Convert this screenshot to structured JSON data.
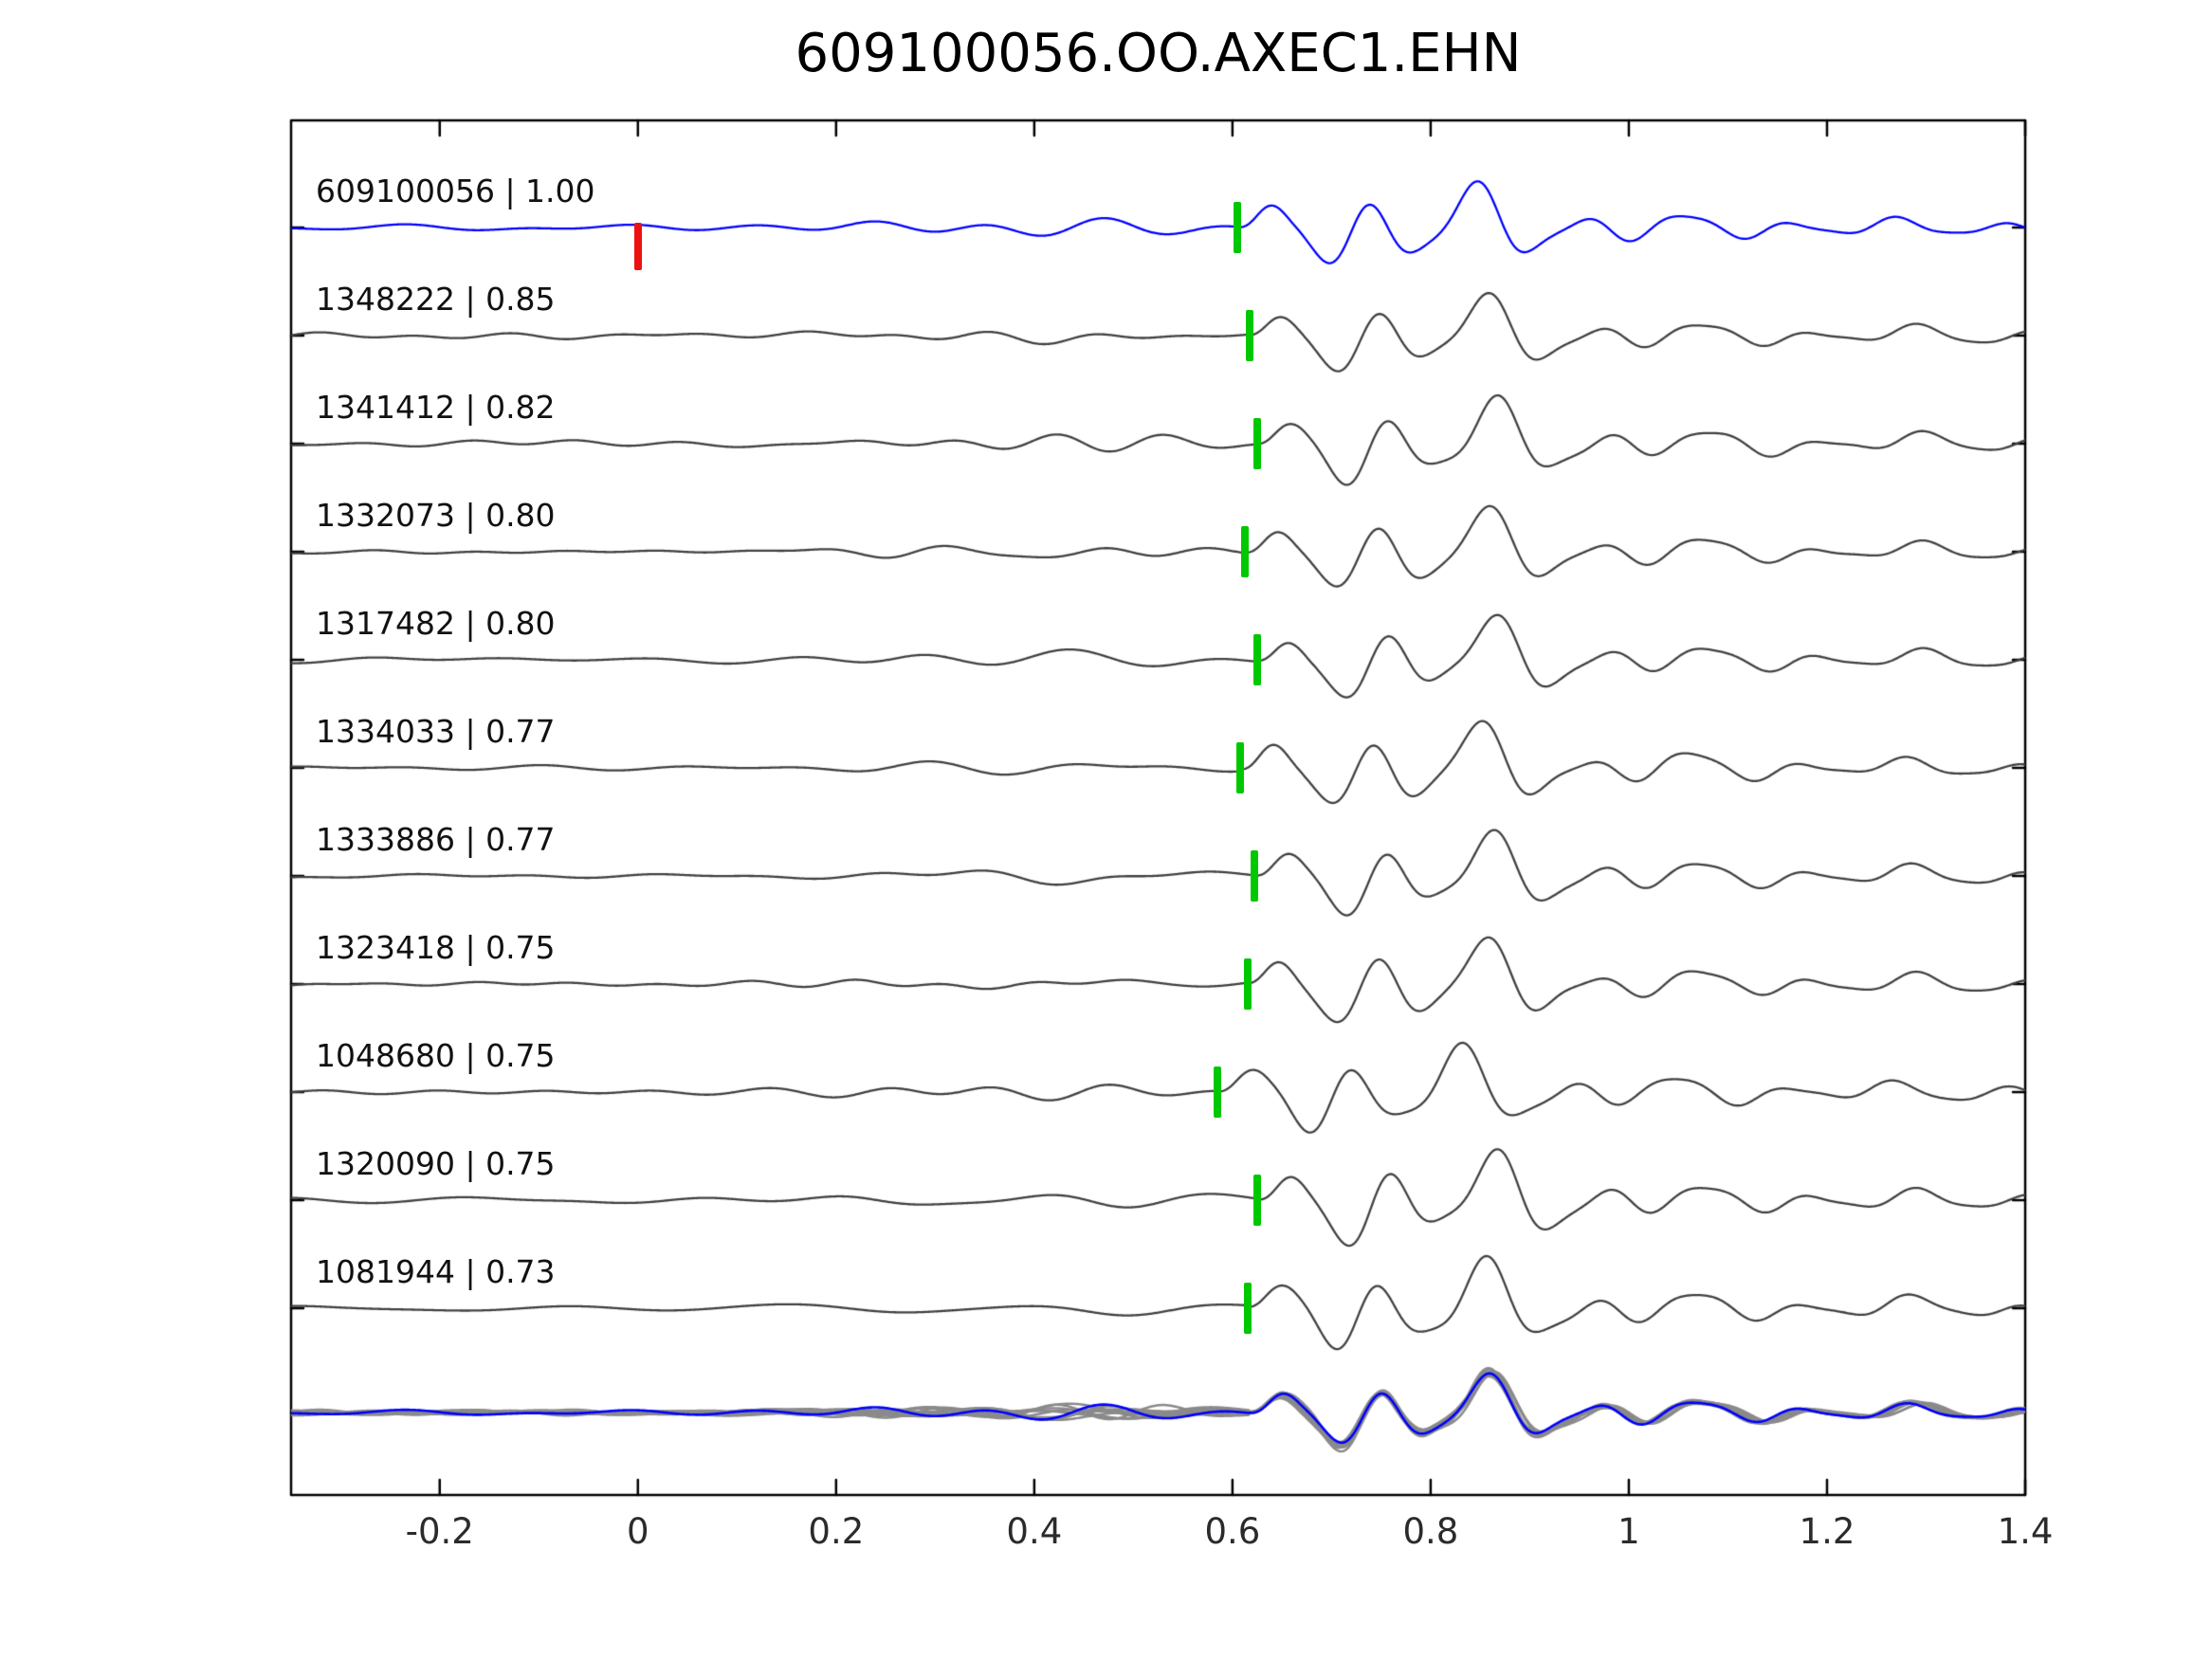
{
  "title": "609100056.OO.AXEC1.EHN",
  "chart_data": {
    "type": "line",
    "title": "609100056.OO.AXEC1.EHN",
    "xlabel": "",
    "ylabel": "",
    "xlim": [
      -0.35,
      1.4
    ],
    "grid": false,
    "legend": "none",
    "x_ticks": [
      -0.2,
      0,
      0.2,
      0.4,
      0.6,
      0.8,
      1,
      1.2,
      1.4
    ],
    "x_tick_labels": [
      "-0.2",
      "0",
      "0.2",
      "0.4",
      "0.6",
      "0.8",
      "1",
      "1.2",
      "1.4"
    ],
    "colors": {
      "template_trace": "#0000ff",
      "match_trace": "#404040",
      "overlay_trace": "#8a8a8a",
      "pick_marker": "#00c800",
      "template_origin_marker": "#ee1111",
      "axis": "#000000"
    },
    "traces": [
      {
        "id": "609100056",
        "correlation": "1.00",
        "label": "609100056 | 1.00",
        "pick_time": 0.605,
        "template_origin_time": 0.0,
        "is_template": true
      },
      {
        "id": "1348222",
        "correlation": "0.85",
        "label": "1348222 | 0.85",
        "pick_time": 0.617
      },
      {
        "id": "1341412",
        "correlation": "0.82",
        "label": "1341412 | 0.82",
        "pick_time": 0.625
      },
      {
        "id": "1332073",
        "correlation": "0.80",
        "label": "1332073 | 0.80",
        "pick_time": 0.613
      },
      {
        "id": "1317482",
        "correlation": "0.80",
        "label": "1317482 | 0.80",
        "pick_time": 0.625
      },
      {
        "id": "1334033",
        "correlation": "0.77",
        "label": "1334033 | 0.77",
        "pick_time": 0.608
      },
      {
        "id": "1333886",
        "correlation": "0.77",
        "label": "1333886 | 0.77",
        "pick_time": 0.622
      },
      {
        "id": "1323418",
        "correlation": "0.75",
        "label": "1323418 | 0.75",
        "pick_time": 0.615
      },
      {
        "id": "1048680",
        "correlation": "0.75",
        "label": "1048680 | 0.75",
        "pick_time": 0.585
      },
      {
        "id": "1320090",
        "correlation": "0.75",
        "label": "1320090 | 0.75",
        "pick_time": 0.625
      },
      {
        "id": "1081944",
        "correlation": "0.73",
        "label": "1081944 | 0.73",
        "pick_time": 0.615
      }
    ],
    "overlay": {
      "description": "all matched traces aligned on pick, template overlaid",
      "align_time": 0.617
    }
  }
}
